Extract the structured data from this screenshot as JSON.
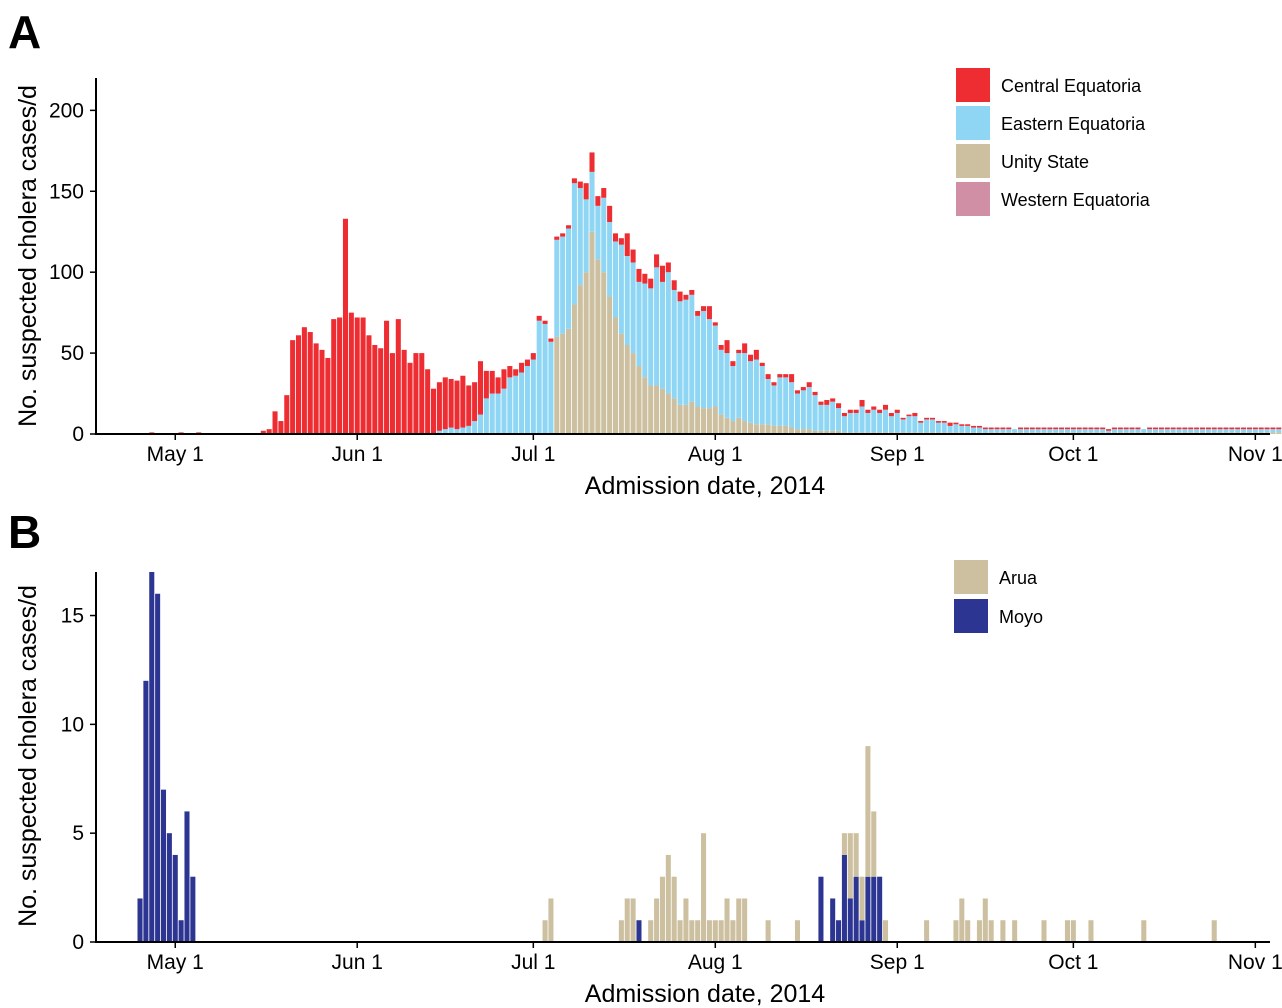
{
  "chart_data": [
    {
      "type": "bar",
      "panel": "A",
      "stacked": true,
      "xlabel": "Admission date, 2014",
      "ylabel": "No. suspected cholera cases/d",
      "ylim": [
        0,
        220
      ],
      "yticks": [
        0,
        50,
        100,
        150,
        200
      ],
      "x_tick_labels": [
        "May 1",
        "Jun 1",
        "Jul 1",
        "Aug 1",
        "Sep 1",
        "Oct 1",
        "Nov 1"
      ],
      "x_tick_dates": [
        "2014-05-01",
        "2014-06-01",
        "2014-07-01",
        "2014-08-01",
        "2014-09-01",
        "2014-10-01",
        "2014-11-01"
      ],
      "xlim": [
        "2014-04-18",
        "2014-11-04"
      ],
      "legend_position": "top-right",
      "grid": false,
      "start_date": "2014-04-24",
      "series": [
        {
          "name": "Central Equatoria",
          "color": "#ee2d32",
          "values": [
            0,
            0,
            0,
            1,
            0,
            0,
            0,
            0,
            1,
            0,
            0,
            1,
            0,
            0,
            0,
            0,
            0,
            0,
            0,
            0,
            0,
            0,
            2,
            3,
            14,
            8,
            24,
            58,
            61,
            66,
            63,
            56,
            52,
            47,
            71,
            72,
            133,
            75,
            72,
            72,
            61,
            55,
            53,
            70,
            50,
            71,
            52,
            44,
            50,
            50,
            40,
            28,
            30,
            32,
            30,
            30,
            32,
            25,
            24,
            33,
            17,
            14,
            10,
            12,
            7,
            4,
            6,
            4,
            4,
            3,
            2,
            2,
            2,
            2,
            2,
            3,
            4,
            10,
            12,
            6,
            6,
            10,
            5,
            4,
            14,
            8,
            8,
            6,
            6,
            8,
            10,
            6,
            6,
            6,
            3,
            3,
            3,
            3,
            8,
            2,
            3,
            8,
            3,
            2,
            6,
            4,
            6,
            2,
            3,
            2,
            2,
            2,
            5,
            2,
            2,
            3,
            2,
            2,
            3,
            2,
            3,
            2,
            2,
            2,
            4,
            2,
            2,
            2,
            3,
            2,
            2,
            1,
            1,
            2,
            1,
            1,
            1,
            1,
            1,
            2,
            1,
            1,
            1,
            1,
            1,
            1,
            1,
            1,
            1,
            1,
            0,
            1,
            1,
            1,
            1,
            1,
            1,
            1,
            1,
            1,
            1,
            1,
            1,
            1,
            1,
            1,
            1,
            1,
            1,
            1,
            1,
            1,
            0,
            1,
            1,
            1,
            1,
            1,
            1,
            1,
            1,
            1,
            1,
            1,
            1,
            1,
            1,
            1,
            1,
            1,
            1,
            1,
            1,
            1,
            1,
            1,
            1,
            1,
            1,
            1,
            1,
            1,
            1,
            1,
            1,
            1,
            1,
            1,
            0,
            0
          ]
        },
        {
          "name": "Eastern Equatoria",
          "color": "#8fd6f5",
          "values": [
            0,
            0,
            0,
            0,
            0,
            0,
            0,
            0,
            0,
            0,
            0,
            0,
            0,
            0,
            0,
            0,
            0,
            0,
            0,
            0,
            0,
            0,
            0,
            0,
            0,
            0,
            0,
            0,
            0,
            0,
            0,
            0,
            0,
            0,
            0,
            0,
            0,
            0,
            0,
            0,
            0,
            0,
            0,
            0,
            0,
            0,
            0,
            0,
            0,
            0,
            0,
            0,
            2,
            3,
            4,
            3,
            4,
            5,
            8,
            12,
            22,
            25,
            25,
            28,
            35,
            36,
            38,
            42,
            46,
            70,
            68,
            57,
            60,
            60,
            62,
            75,
            60,
            45,
            37,
            33,
            46,
            46,
            47,
            55,
            55,
            56,
            52,
            58,
            60,
            73,
            66,
            75,
            67,
            64,
            65,
            66,
            56,
            60,
            55,
            50,
            40,
            40,
            34,
            40,
            42,
            38,
            40,
            36,
            28,
            25,
            30,
            30,
            28,
            22,
            24,
            26,
            22,
            16,
            16,
            18,
            14,
            10,
            12,
            12,
            16,
            12,
            14,
            12,
            14,
            10,
            12,
            8,
            10,
            10,
            6,
            8,
            8,
            6,
            6,
            4,
            5,
            4,
            4,
            3,
            3,
            3,
            2,
            2,
            2,
            2,
            2,
            2,
            2,
            2,
            2,
            2,
            2,
            2,
            2,
            2,
            2,
            2,
            2,
            2,
            2,
            2,
            2,
            2,
            2,
            2,
            2,
            2,
            2,
            2,
            2,
            2,
            2,
            2,
            2,
            2,
            2,
            2,
            2,
            2,
            2,
            2,
            2,
            2,
            2,
            2,
            2,
            2,
            2,
            2,
            2,
            2,
            2,
            2,
            2,
            2,
            2,
            2,
            2,
            2,
            2,
            2,
            2,
            2,
            2,
            2,
            2,
            2,
            2,
            2,
            2,
            2,
            2,
            2,
            2,
            2,
            2,
            2,
            2,
            2,
            2,
            2,
            2,
            2,
            2,
            2,
            2,
            2,
            2,
            2,
            2,
            2,
            2,
            2,
            2,
            2,
            2,
            2,
            2,
            2,
            2,
            2,
            2
          ]
        },
        {
          "name": "Unity State",
          "color": "#cdc0a0",
          "values": [
            0,
            0,
            0,
            0,
            0,
            0,
            0,
            0,
            0,
            0,
            0,
            0,
            0,
            0,
            0,
            0,
            0,
            0,
            0,
            0,
            0,
            0,
            0,
            0,
            0,
            0,
            0,
            0,
            0,
            0,
            0,
            0,
            0,
            0,
            0,
            0,
            0,
            0,
            0,
            0,
            0,
            0,
            0,
            0,
            0,
            0,
            0,
            0,
            0,
            0,
            0,
            0,
            0,
            0,
            0,
            0,
            0,
            0,
            0,
            0,
            0,
            0,
            0,
            0,
            0,
            0,
            0,
            0,
            0,
            0,
            0,
            0,
            60,
            62,
            65,
            80,
            92,
            100,
            125,
            108,
            100,
            85,
            72,
            62,
            55,
            50,
            42,
            35,
            30,
            30,
            28,
            25,
            22,
            18,
            18,
            20,
            17,
            16,
            16,
            17,
            12,
            10,
            8,
            10,
            8,
            7,
            6,
            6,
            6,
            5,
            5,
            5,
            4,
            3,
            3,
            3,
            2,
            2,
            2,
            2,
            2,
            1,
            1,
            1,
            1,
            1,
            1,
            1,
            1,
            1,
            1,
            1,
            1,
            1,
            1,
            1,
            1,
            1,
            1,
            1,
            1,
            1,
            1,
            1,
            1,
            0,
            1,
            1,
            1,
            1,
            1,
            1,
            1,
            1,
            1,
            1,
            1,
            1,
            1,
            1,
            1,
            1,
            1,
            1,
            1,
            1,
            0,
            1,
            1,
            1,
            1,
            1,
            1,
            1,
            1,
            1,
            1,
            1,
            1,
            1,
            1,
            1,
            1,
            1,
            1,
            1,
            1,
            1,
            1,
            1,
            1,
            1,
            1,
            1,
            1,
            1,
            1,
            1,
            1,
            1,
            1,
            1,
            1,
            1,
            1,
            1,
            1,
            1,
            1,
            1,
            1,
            1,
            1,
            1,
            1,
            1,
            1,
            0,
            0
          ]
        },
        {
          "name": "Western Equatoria",
          "color": "#d08fa4",
          "values": [
            0
          ]
        }
      ]
    },
    {
      "type": "bar",
      "panel": "B",
      "stacked": true,
      "xlabel": "Admission date, 2014",
      "ylabel": "No. suspected cholera cases/d",
      "ylim": [
        0,
        17
      ],
      "yticks": [
        0,
        5,
        10,
        15
      ],
      "x_tick_labels": [
        "May 1",
        "Jun 1",
        "Jul 1",
        "Aug 1",
        "Sep 1",
        "Oct 1",
        "Nov 1"
      ],
      "x_tick_dates": [
        "2014-05-01",
        "2014-06-01",
        "2014-07-01",
        "2014-08-01",
        "2014-09-01",
        "2014-10-01",
        "2014-11-01"
      ],
      "xlim": [
        "2014-04-18",
        "2014-11-04"
      ],
      "legend_position": "top-right",
      "grid": false,
      "series": [
        {
          "name": "Arua",
          "color": "#cdc0a0",
          "points": [
            [
              "2014-07-03",
              1
            ],
            [
              "2014-07-04",
              2
            ],
            [
              "2014-07-16",
              1
            ],
            [
              "2014-07-17",
              2
            ],
            [
              "2014-07-18",
              2
            ],
            [
              "2014-07-21",
              1
            ],
            [
              "2014-07-22",
              2
            ],
            [
              "2014-07-23",
              3
            ],
            [
              "2014-07-24",
              4
            ],
            [
              "2014-07-25",
              3
            ],
            [
              "2014-07-26",
              1
            ],
            [
              "2014-07-27",
              2
            ],
            [
              "2014-07-28",
              1
            ],
            [
              "2014-07-29",
              1
            ],
            [
              "2014-07-30",
              5
            ],
            [
              "2014-07-31",
              1
            ],
            [
              "2014-08-01",
              1
            ],
            [
              "2014-08-02",
              1
            ],
            [
              "2014-08-03",
              2
            ],
            [
              "2014-08-04",
              1
            ],
            [
              "2014-08-05",
              2
            ],
            [
              "2014-08-06",
              2
            ],
            [
              "2014-08-10",
              1
            ],
            [
              "2014-08-15",
              1
            ],
            [
              "2014-08-23",
              1
            ],
            [
              "2014-08-24",
              3
            ],
            [
              "2014-08-25",
              2
            ],
            [
              "2014-08-26",
              2
            ],
            [
              "2014-08-27",
              6
            ],
            [
              "2014-08-28",
              3
            ],
            [
              "2014-08-30",
              1
            ],
            [
              "2014-09-06",
              1
            ],
            [
              "2014-09-11",
              1
            ],
            [
              "2014-09-12",
              2
            ],
            [
              "2014-09-13",
              1
            ],
            [
              "2014-09-15",
              1
            ],
            [
              "2014-09-16",
              2
            ],
            [
              "2014-09-17",
              1
            ],
            [
              "2014-09-19",
              1
            ],
            [
              "2014-09-21",
              1
            ],
            [
              "2014-09-26",
              1
            ],
            [
              "2014-09-30",
              1
            ],
            [
              "2014-10-01",
              1
            ],
            [
              "2014-10-04",
              1
            ],
            [
              "2014-10-13",
              1
            ],
            [
              "2014-10-25",
              1
            ]
          ]
        },
        {
          "name": "Moyo",
          "color": "#2d3592",
          "points": [
            [
              "2014-04-25",
              2
            ],
            [
              "2014-04-26",
              12
            ],
            [
              "2014-04-27",
              17
            ],
            [
              "2014-04-28",
              16
            ],
            [
              "2014-04-29",
              7
            ],
            [
              "2014-04-30",
              5
            ],
            [
              "2014-05-01",
              4
            ],
            [
              "2014-05-02",
              1
            ],
            [
              "2014-05-03",
              6
            ],
            [
              "2014-05-04",
              3
            ],
            [
              "2014-07-19",
              1
            ],
            [
              "2014-08-19",
              3
            ],
            [
              "2014-08-21",
              2
            ],
            [
              "2014-08-22",
              1
            ],
            [
              "2014-08-23",
              4
            ],
            [
              "2014-08-24",
              2
            ],
            [
              "2014-08-25",
              3
            ],
            [
              "2014-08-26",
              1
            ],
            [
              "2014-08-27",
              3
            ],
            [
              "2014-08-28",
              3
            ],
            [
              "2014-08-29",
              3
            ]
          ]
        }
      ]
    }
  ]
}
